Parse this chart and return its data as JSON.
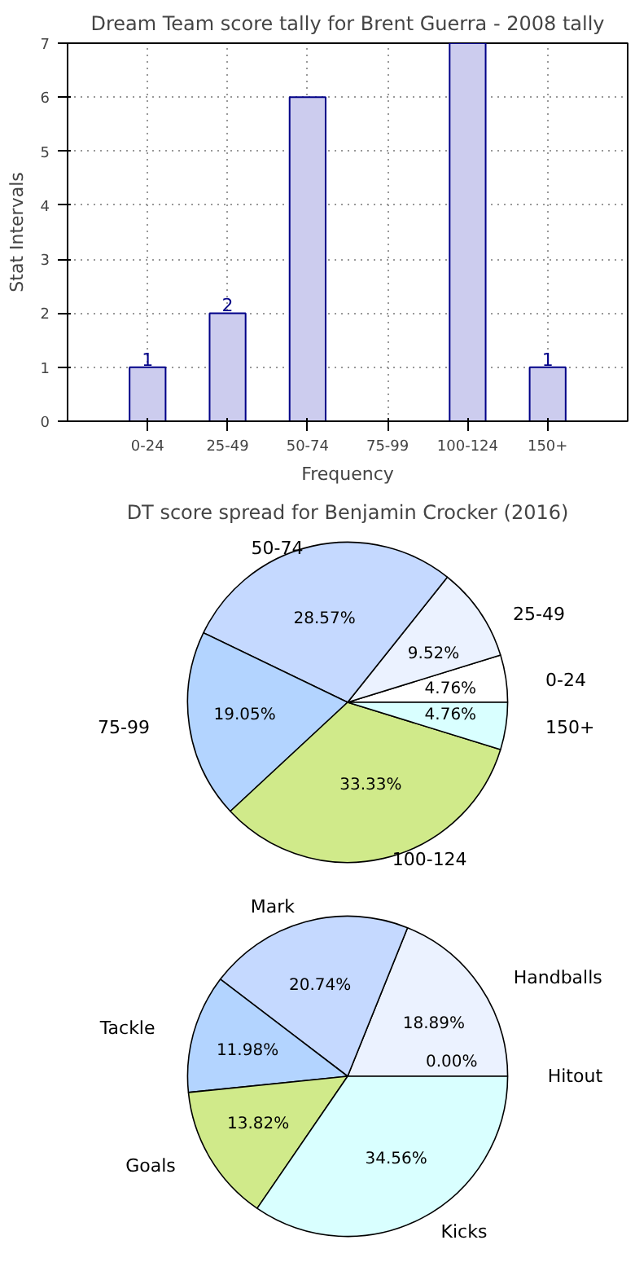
{
  "chart_data": [
    {
      "type": "bar",
      "title": "Dream Team score tally for Brent Guerra - 2008 tally",
      "xlabel": "Frequency",
      "ylabel": "Stat Intervals",
      "categories": [
        "0-24",
        "25-49",
        "50-74",
        "75-99",
        "100-124",
        "150+"
      ],
      "values": [
        1,
        2,
        6,
        null,
        7,
        1
      ],
      "value_labels": [
        "1",
        "2",
        null,
        null,
        null,
        "1"
      ],
      "color": "#ccccee",
      "ylim": [
        0,
        7
      ],
      "yticks": [
        0,
        1,
        2,
        3,
        4,
        5,
        6,
        7
      ],
      "grid": true
    },
    {
      "type": "pie",
      "title": "DT score spread for Benjamin Crocker (2016)",
      "categories": [
        "0-24",
        "25-49",
        "50-74",
        "75-99",
        "100-124",
        "150+"
      ],
      "values": [
        4.76,
        9.52,
        28.57,
        19.05,
        33.33,
        4.76
      ],
      "value_labels": [
        "4.76%",
        "9.52%",
        "28.57%",
        "19.05%",
        "33.33%",
        "4.76%"
      ],
      "colors": [
        "#ffffff",
        "#ebf2ff",
        "#c5d9ff",
        "#b3d4ff",
        "#d0ea8a",
        "#d9ffff"
      ]
    },
    {
      "type": "pie",
      "categories": [
        "Handballs",
        "Mark",
        "Tackle",
        "Goals",
        "Kicks",
        "Hitout"
      ],
      "values": [
        18.89,
        20.74,
        11.98,
        13.82,
        34.56,
        0
      ],
      "value_labels": [
        "18.89%",
        "20.74%",
        "11.98%",
        "13.82%",
        "34.56%",
        "0.00%"
      ],
      "colors": [
        "#ebf2ff",
        "#c5d9ff",
        "#b3d4ff",
        "#d0ea8a",
        "#d9ffff",
        "#ffffff"
      ]
    }
  ]
}
